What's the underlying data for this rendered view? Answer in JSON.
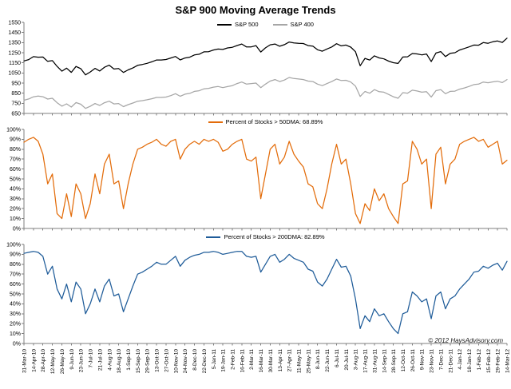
{
  "title": "S&P 900 Moving Average Trends",
  "copyright": "© 2012 HaysAdvisory.com",
  "colors": {
    "sp500": "#000000",
    "sp400": "#A6A6A6",
    "pct_above_50dma": "#E36C0A",
    "pct_above_200dma": "#1F5C99",
    "axis": "#7F7F7F",
    "background": "#FFFFFF"
  },
  "chart_data": [
    {
      "type": "line",
      "panel": "price",
      "ylim": [
        650,
        1550
      ],
      "yticks": [
        "650",
        "750",
        "850",
        "950",
        "1050",
        "1150",
        "1250",
        "1350",
        "1450",
        "1550"
      ],
      "legend_position": "top-center",
      "x_range": [
        "31-Mar-10",
        "14-Mar-12"
      ],
      "series": [
        {
          "name": "S&P 500",
          "color": "#000000",
          "values": [
            1169,
            1182,
            1211,
            1206,
            1207,
            1165,
            1172,
            1115,
            1068,
            1098,
            1056,
            1114,
            1092,
            1031,
            1060,
            1095,
            1069,
            1106,
            1127,
            1089,
            1094,
            1055,
            1080,
            1099,
            1125,
            1134,
            1145,
            1160,
            1178,
            1178,
            1183,
            1198,
            1213,
            1179,
            1198,
            1206,
            1228,
            1235,
            1259,
            1260,
            1277,
            1286,
            1282,
            1297,
            1304,
            1321,
            1336,
            1307,
            1308,
            1320,
            1257,
            1298,
            1328,
            1336,
            1314,
            1330,
            1356,
            1347,
            1342,
            1341,
            1320,
            1315,
            1279,
            1265,
            1287,
            1307,
            1339,
            1318,
            1326,
            1305,
            1260,
            1121,
            1194,
            1177,
            1219,
            1199,
            1189,
            1167,
            1151,
            1144,
            1207,
            1210,
            1242,
            1238,
            1229,
            1237,
            1162,
            1247,
            1261,
            1212,
            1244,
            1250,
            1277,
            1292,
            1308,
            1326,
            1324,
            1350,
            1343,
            1358,
            1366,
            1352,
            1394
          ]
        },
        {
          "name": "S&P 400",
          "color": "#A6A6A6",
          "values": [
            780,
            793,
            814,
            822,
            815,
            792,
            800,
            756,
            722,
            745,
            713,
            757,
            741,
            700,
            720,
            748,
            729,
            756,
            771,
            744,
            748,
            717,
            737,
            753,
            771,
            776,
            785,
            795,
            808,
            808,
            812,
            826,
            845,
            820,
            840,
            848,
            868,
            874,
            893,
            898,
            910,
            916,
            905,
            915,
            925,
            945,
            960,
            940,
            945,
            950,
            905,
            940,
            970,
            985,
            965,
            980,
            1005,
            995,
            990,
            985,
            970,
            965,
            940,
            925,
            945,
            965,
            990,
            975,
            978,
            960,
            920,
            818,
            867,
            850,
            885,
            865,
            860,
            838,
            815,
            800,
            855,
            850,
            880,
            872,
            860,
            865,
            812,
            875,
            885,
            845,
            868,
            870,
            890,
            902,
            917,
            935,
            940,
            960,
            953,
            962,
            968,
            955,
            985
          ]
        }
      ]
    },
    {
      "type": "line",
      "panel": "percent-above-50dma",
      "ylim": [
        0,
        100
      ],
      "yticks": [
        "0%",
        "10%",
        "20%",
        "30%",
        "40%",
        "50%",
        "60%",
        "70%",
        "80%",
        "90%",
        "100%"
      ],
      "legend_position": "top-center",
      "x_range": [
        "31-Mar-10",
        "14-Mar-12"
      ],
      "series": [
        {
          "name": "Percent of Stocks > 50DMA: 68.89%",
          "color": "#E36C0A",
          "latest_value": 68.89,
          "values": [
            87,
            90,
            92,
            88,
            75,
            45,
            55,
            15,
            10,
            35,
            12,
            45,
            35,
            10,
            25,
            55,
            35,
            65,
            75,
            45,
            48,
            20,
            45,
            65,
            80,
            82,
            85,
            87,
            90,
            85,
            83,
            88,
            90,
            70,
            80,
            85,
            88,
            85,
            90,
            88,
            90,
            87,
            78,
            80,
            85,
            88,
            90,
            70,
            68,
            72,
            30,
            55,
            80,
            85,
            65,
            72,
            88,
            75,
            68,
            62,
            45,
            42,
            25,
            20,
            40,
            65,
            85,
            65,
            70,
            45,
            15,
            5,
            25,
            18,
            40,
            28,
            35,
            20,
            12,
            5,
            45,
            48,
            88,
            80,
            65,
            70,
            20,
            75,
            82,
            45,
            65,
            70,
            85,
            88,
            90,
            92,
            88,
            90,
            82,
            85,
            88,
            65,
            68.89
          ]
        }
      ]
    },
    {
      "type": "line",
      "panel": "percent-above-200dma",
      "ylim": [
        0,
        100
      ],
      "yticks": [
        "0%",
        "10%",
        "20%",
        "30%",
        "40%",
        "50%",
        "60%",
        "70%",
        "80%",
        "90%",
        "100%"
      ],
      "legend_position": "top-center",
      "x_tick_labels": [
        "31-Mar-10",
        "14-Apr-10",
        "28-Apr-10",
        "12-May-10",
        "26-May-10",
        "9-Jun-10",
        "23-Jun-10",
        "7-Jul-10",
        "21-Jul-10",
        "4-Aug-10",
        "18-Aug-10",
        "1-Sep-10",
        "15-Sep-10",
        "29-Sep-10",
        "13-Oct-10",
        "27-Oct-10",
        "10-Nov-10",
        "24-Nov-10",
        "8-Dec-10",
        "22-Dec-10",
        "5-Jan-11",
        "19-Jan-11",
        "2-Feb-11",
        "16-Feb-11",
        "2-Mar-11",
        "16-Mar-11",
        "30-Mar-11",
        "13-Apr-11",
        "27-Apr-11",
        "11-May-11",
        "25-May-11",
        "8-Jun-11",
        "22-Jun-11",
        "6-Jul-11",
        "20-Jul-11",
        "3-Aug-11",
        "17-Aug-11",
        "31-Aug-11",
        "14-Sep-11",
        "28-Sep-11",
        "12-Oct-11",
        "26-Oct-11",
        "9-Nov-11",
        "23-Nov-11",
        "7-Dec-11",
        "21-Dec-11",
        "4-Jan-12",
        "18-Jan-12",
        "1-Feb-12",
        "15-Feb-12",
        "29-Feb-12",
        "14-Mar-12"
      ],
      "series": [
        {
          "name": "Percent of Stocks > 200DMA: 82.89%",
          "color": "#1F5C99",
          "latest_value": 82.89,
          "values": [
            91,
            92,
            93,
            92,
            88,
            70,
            78,
            55,
            45,
            60,
            42,
            62,
            55,
            30,
            40,
            55,
            42,
            58,
            65,
            48,
            50,
            32,
            45,
            58,
            70,
            72,
            75,
            78,
            82,
            80,
            80,
            84,
            88,
            78,
            84,
            87,
            89,
            90,
            92,
            92,
            93,
            92,
            90,
            91,
            92,
            93,
            93,
            88,
            87,
            88,
            72,
            80,
            88,
            90,
            82,
            85,
            90,
            86,
            84,
            82,
            75,
            73,
            62,
            58,
            65,
            75,
            85,
            77,
            78,
            68,
            45,
            15,
            28,
            22,
            35,
            28,
            30,
            22,
            15,
            10,
            30,
            32,
            52,
            48,
            42,
            45,
            25,
            48,
            52,
            35,
            45,
            48,
            55,
            60,
            65,
            72,
            73,
            78,
            76,
            79,
            81,
            74,
            82.89
          ]
        }
      ]
    }
  ]
}
